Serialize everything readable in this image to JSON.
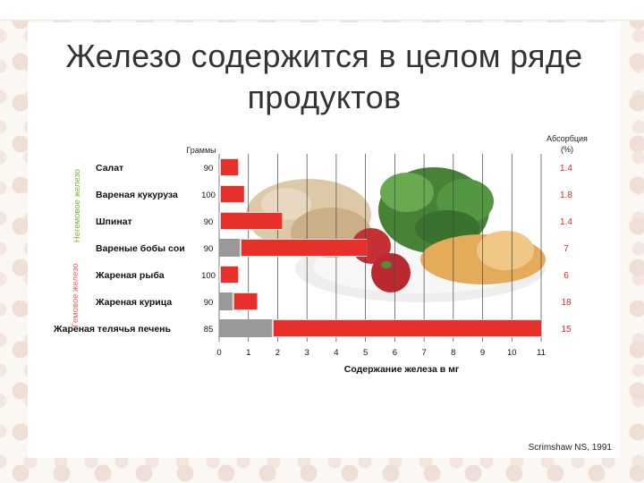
{
  "title": "Железо содержится в целом ряде продуктов",
  "credit": "Scrimshaw NS, 1991",
  "colors": {
    "bar": "#e8302a",
    "heme": "#999999",
    "nonheme_group": "#7fae3a",
    "heme_group": "#e3685b",
    "absorption_text": "#e12b20"
  },
  "chart_data": {
    "type": "bar",
    "orientation": "horizontal",
    "xlabel": "Содержание железа в мг",
    "xlim": [
      0,
      11
    ],
    "xticks": [
      0,
      1,
      2,
      3,
      4,
      5,
      6,
      7,
      8,
      9,
      10,
      11
    ],
    "grid": true,
    "grams_header": "Граммы",
    "absorption_header": [
      "Абсорбция",
      "(%)"
    ],
    "groups": [
      {
        "label": "Негемовое железо",
        "rows": [
          0,
          1,
          2,
          3
        ]
      },
      {
        "label": "Гемовое железо",
        "rows": [
          4,
          5,
          6
        ]
      }
    ],
    "categories": [
      "Салат",
      "Вареная кукуруза",
      "Шпинат",
      "Вареные бобы сои",
      "Жареная рыба",
      "Жареная курица",
      "Жареная телячья печень"
    ],
    "grams": [
      "90",
      "100",
      "90",
      "90",
      "100",
      "90",
      "85"
    ],
    "absorption": [
      "1.4",
      "1.8",
      "1.4",
      "7",
      "6",
      "18",
      "15"
    ],
    "series": [
      {
        "values": [
          0,
          0,
          0,
          0.7,
          0,
          0.45,
          1.8
        ]
      },
      {
        "values": [
          0.65,
          0.85,
          2.15,
          4.35,
          0.65,
          0.85,
          9.2
        ]
      }
    ]
  }
}
